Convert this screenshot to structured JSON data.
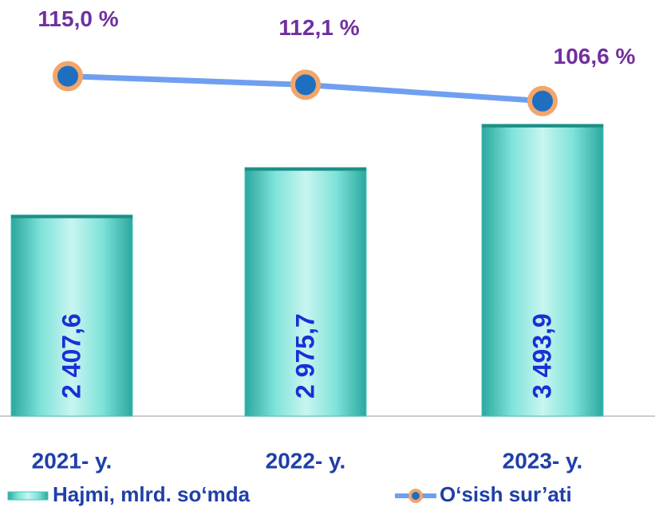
{
  "chart_data": {
    "type": "bar",
    "categories": [
      "2021- y.",
      "2022- y.",
      "2023- y."
    ],
    "series": [
      {
        "name": "Hajmi, mlrd. so‘mda",
        "type": "bar",
        "color": "#3cc7bc",
        "values": [
          2407.6,
          2975.7,
          3493.9
        ],
        "value_labels": [
          "2 407,6",
          "2 975,7",
          "3 493,9"
        ]
      },
      {
        "name": "O‘sish sur’ati",
        "type": "line",
        "axis": "y2",
        "color": "#6f9ff0",
        "marker_color": "#1e6fc0",
        "marker_edge": "#f2a66c",
        "values": [
          115.0,
          112.1,
          106.6
        ],
        "value_labels": [
          "115,0 %",
          "112,1 %",
          "106,6 %"
        ]
      }
    ],
    "ylim": [
      0,
      4600
    ],
    "y2lim": [
      0,
      130
    ],
    "legend": "bottom"
  }
}
